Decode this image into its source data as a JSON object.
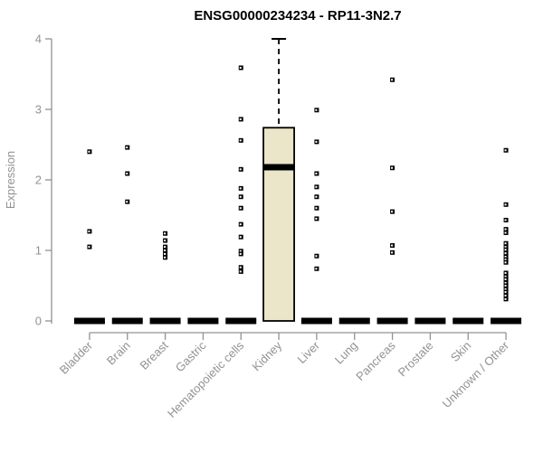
{
  "chart_data": {
    "type": "boxplot",
    "title": "ENSG00000234234 - RP11-3N2.7",
    "xlabel": "",
    "ylabel": "Expression",
    "ylim": [
      0,
      4
    ],
    "yticks": [
      0,
      1,
      2,
      3,
      4
    ],
    "grid": false,
    "legend": "none",
    "categories": [
      "Bladder",
      "Brain",
      "Breast",
      "Gastric",
      "Hematopoietic cells",
      "Kidney",
      "Liver",
      "Lung",
      "Pancreas",
      "Prostate",
      "Skin",
      "Unknown / Other"
    ],
    "boxes": [
      {
        "category": "Bladder",
        "whisker_low": 0,
        "q1": 0,
        "median": 0,
        "q3": 0,
        "whisker_high": 0
      },
      {
        "category": "Brain",
        "whisker_low": 0,
        "q1": 0,
        "median": 0,
        "q3": 0,
        "whisker_high": 0
      },
      {
        "category": "Breast",
        "whisker_low": 0,
        "q1": 0,
        "median": 0,
        "q3": 0,
        "whisker_high": 0
      },
      {
        "category": "Gastric",
        "whisker_low": 0,
        "q1": 0,
        "median": 0,
        "q3": 0,
        "whisker_high": 0
      },
      {
        "category": "Hematopoietic cells",
        "whisker_low": 0,
        "q1": 0,
        "median": 0,
        "q3": 0,
        "whisker_high": 0
      },
      {
        "category": "Kidney",
        "whisker_low": 0,
        "q1": 0,
        "median": 2.18,
        "q3": 2.74,
        "whisker_high": 4.0
      },
      {
        "category": "Liver",
        "whisker_low": 0,
        "q1": 0,
        "median": 0,
        "q3": 0,
        "whisker_high": 0
      },
      {
        "category": "Lung",
        "whisker_low": 0,
        "q1": 0,
        "median": 0,
        "q3": 0,
        "whisker_high": 0
      },
      {
        "category": "Pancreas",
        "whisker_low": 0,
        "q1": 0,
        "median": 0,
        "q3": 0,
        "whisker_high": 0
      },
      {
        "category": "Prostate",
        "whisker_low": 0,
        "q1": 0,
        "median": 0,
        "q3": 0,
        "whisker_high": 0
      },
      {
        "category": "Skin",
        "whisker_low": 0,
        "q1": 0,
        "median": 0,
        "q3": 0,
        "whisker_high": 0
      },
      {
        "category": "Unknown / Other",
        "whisker_low": 0,
        "q1": 0,
        "median": 0,
        "q3": 0,
        "whisker_high": 0
      }
    ],
    "outliers": [
      [
        2.4,
        1.27,
        1.05
      ],
      [
        2.46,
        2.09,
        1.69
      ],
      [
        1.24,
        1.14,
        1.05,
        1.0,
        0.95,
        0.9
      ],
      [],
      [
        3.59,
        2.86,
        2.56,
        2.15,
        1.88,
        1.76,
        1.6,
        1.37,
        1.19,
        0.99,
        0.95,
        0.76,
        0.7
      ],
      [],
      [
        2.99,
        2.54,
        2.09,
        1.9,
        1.76,
        1.6,
        1.45,
        0.92,
        0.74
      ],
      [],
      [
        3.42,
        2.17,
        1.55,
        1.07,
        0.97
      ],
      [],
      [],
      [
        2.42,
        1.65,
        1.43,
        1.3,
        1.25,
        1.1,
        1.05,
        1.01,
        0.96,
        0.91,
        0.87,
        0.83,
        0.68,
        0.63,
        0.59,
        0.54,
        0.5,
        0.45,
        0.41,
        0.36,
        0.31
      ]
    ],
    "colors": {
      "box_fill": "#ebe5c9",
      "box_stroke": "#000000",
      "median": "#000000",
      "point": "#000000",
      "axis": "#929292",
      "tick_text": "#929292",
      "title": "#000000",
      "background": "#ffffff"
    }
  }
}
